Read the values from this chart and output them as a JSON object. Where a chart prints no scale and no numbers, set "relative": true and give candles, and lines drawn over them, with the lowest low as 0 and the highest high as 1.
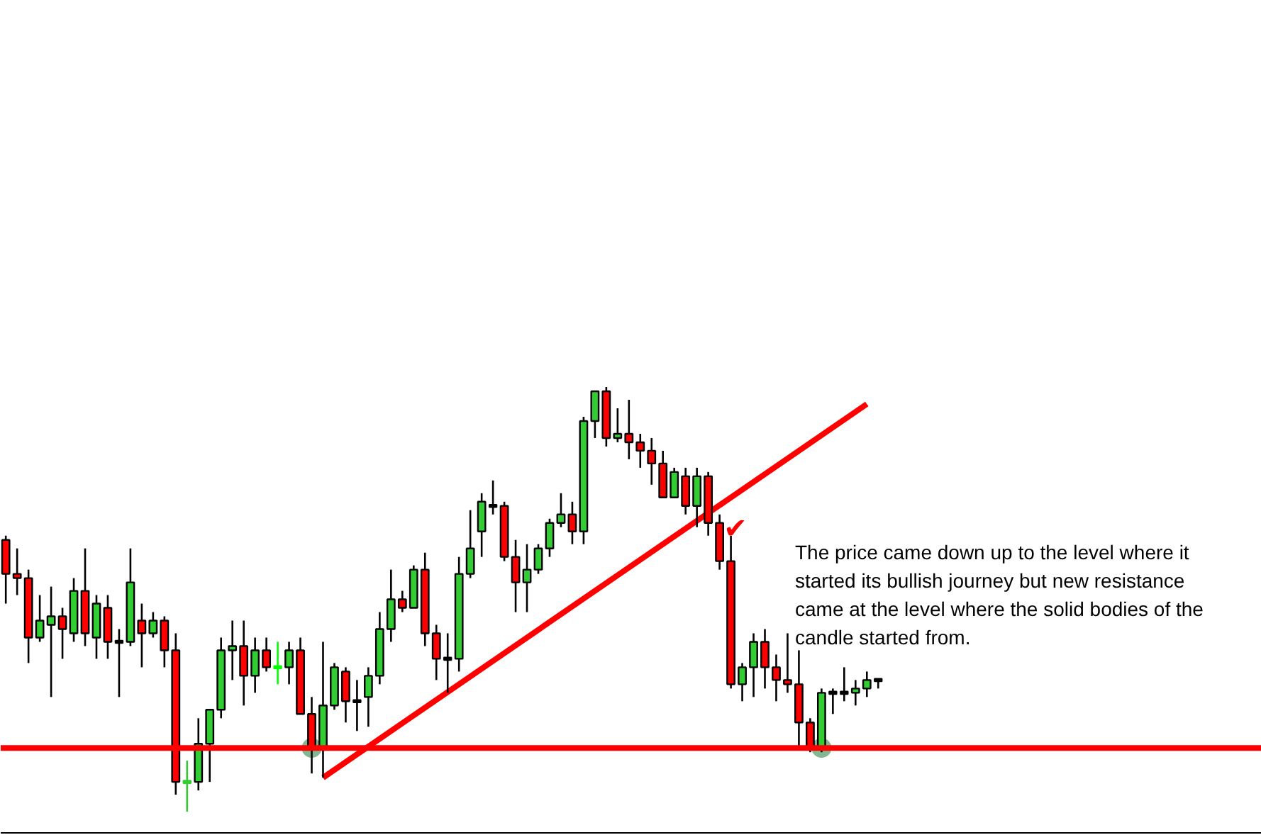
{
  "chart_data": {
    "type": "candlestick",
    "relative": true,
    "categories": [
      null,
      null,
      null,
      null,
      null,
      null,
      null,
      null,
      null,
      null,
      null,
      null,
      null,
      null,
      null,
      null,
      null,
      null,
      null,
      null,
      null,
      null,
      null,
      null,
      null,
      null,
      null,
      null,
      null,
      null,
      null,
      null,
      null,
      null,
      null,
      null,
      null,
      null,
      null,
      null,
      null,
      null,
      null,
      null,
      null,
      null,
      null,
      null,
      null,
      null,
      null,
      null,
      null,
      null,
      null,
      null,
      null,
      null,
      null,
      null,
      null,
      null,
      null,
      null,
      null,
      null,
      null,
      null,
      null,
      null,
      null,
      null,
      null,
      null,
      null,
      null,
      null,
      null
    ],
    "ohlc": [
      [
        0.64,
        0.65,
        0.49,
        0.56
      ],
      [
        0.56,
        0.62,
        0.51,
        0.55
      ],
      [
        0.55,
        0.57,
        0.35,
        0.41
      ],
      [
        0.41,
        0.51,
        0.4,
        0.45
      ],
      [
        0.44,
        0.53,
        0.27,
        0.46
      ],
      [
        0.46,
        0.48,
        0.36,
        0.43
      ],
      [
        0.42,
        0.55,
        0.4,
        0.52
      ],
      [
        0.52,
        0.62,
        0.39,
        0.42
      ],
      [
        0.41,
        0.51,
        0.36,
        0.49
      ],
      [
        0.48,
        0.51,
        0.36,
        0.4
      ],
      [
        0.4,
        0.43,
        0.27,
        0.4
      ],
      [
        0.4,
        0.62,
        0.39,
        0.54
      ],
      [
        0.45,
        0.49,
        0.34,
        0.42
      ],
      [
        0.42,
        0.47,
        0.41,
        0.45
      ],
      [
        0.45,
        0.46,
        0.34,
        0.38
      ],
      [
        0.38,
        0.42,
        0.04,
        0.07
      ],
      [
        0.07,
        0.12,
        0.0,
        0.07
      ],
      [
        0.07,
        0.22,
        0.05,
        0.16
      ],
      [
        0.16,
        0.24,
        0.07,
        0.24
      ],
      [
        0.24,
        0.41,
        0.22,
        0.38
      ],
      [
        0.38,
        0.45,
        0.31,
        0.39
      ],
      [
        0.39,
        0.45,
        0.25,
        0.32
      ],
      [
        0.32,
        0.41,
        0.28,
        0.38
      ],
      [
        0.38,
        0.41,
        0.33,
        0.34
      ],
      [
        0.34,
        0.4,
        0.3,
        0.34
      ],
      [
        0.34,
        0.4,
        0.3,
        0.38
      ],
      [
        0.38,
        0.41,
        0.23,
        0.23
      ],
      [
        0.23,
        0.27,
        0.09,
        0.15
      ],
      [
        0.15,
        0.4,
        0.08,
        0.25
      ],
      [
        0.25,
        0.35,
        0.24,
        0.34
      ],
      [
        0.33,
        0.34,
        0.21,
        0.26
      ],
      [
        0.26,
        0.31,
        0.19,
        0.26
      ],
      [
        0.27,
        0.34,
        0.2,
        0.32
      ],
      [
        0.32,
        0.47,
        0.3,
        0.43
      ],
      [
        0.43,
        0.57,
        0.4,
        0.5
      ],
      [
        0.5,
        0.52,
        0.47,
        0.48
      ],
      [
        0.48,
        0.58,
        0.48,
        0.57
      ],
      [
        0.57,
        0.61,
        0.39,
        0.42
      ],
      [
        0.42,
        0.44,
        0.31,
        0.36
      ],
      [
        0.36,
        0.42,
        0.28,
        0.36
      ],
      [
        0.36,
        0.6,
        0.33,
        0.56
      ],
      [
        0.56,
        0.71,
        0.55,
        0.62
      ],
      [
        0.66,
        0.75,
        0.6,
        0.73
      ],
      [
        0.72,
        0.78,
        0.7,
        0.72
      ],
      [
        0.72,
        0.73,
        0.59,
        0.6
      ],
      [
        0.6,
        0.64,
        0.47,
        0.54
      ],
      [
        0.54,
        0.63,
        0.47,
        0.57
      ],
      [
        0.57,
        0.63,
        0.56,
        0.62
      ],
      [
        0.62,
        0.69,
        0.6,
        0.68
      ],
      [
        0.68,
        0.75,
        0.67,
        0.7
      ],
      [
        0.7,
        0.73,
        0.63,
        0.66
      ],
      [
        0.66,
        0.93,
        0.63,
        0.92
      ],
      [
        0.92,
        0.99,
        0.88,
        0.99
      ],
      [
        0.99,
        1.0,
        0.86,
        0.88
      ],
      [
        0.88,
        0.95,
        0.87,
        0.89
      ],
      [
        0.89,
        0.97,
        0.83,
        0.87
      ],
      [
        0.87,
        0.89,
        0.81,
        0.85
      ],
      [
        0.85,
        0.88,
        0.77,
        0.82
      ],
      [
        0.82,
        0.85,
        0.74,
        0.74
      ],
      [
        0.74,
        0.81,
        0.74,
        0.8
      ],
      [
        0.79,
        0.81,
        0.7,
        0.72
      ],
      [
        0.72,
        0.81,
        0.67,
        0.79
      ],
      [
        0.79,
        0.8,
        0.65,
        0.68
      ],
      [
        0.68,
        0.7,
        0.57,
        0.59
      ],
      [
        0.59,
        0.65,
        0.29,
        0.3
      ],
      [
        0.3,
        0.35,
        0.26,
        0.34
      ],
      [
        0.34,
        0.42,
        0.27,
        0.4
      ],
      [
        0.4,
        0.43,
        0.29,
        0.34
      ],
      [
        0.34,
        0.37,
        0.26,
        0.31
      ],
      [
        0.31,
        0.42,
        0.28,
        0.3
      ],
      [
        0.3,
        0.38,
        0.15,
        0.21
      ],
      [
        0.21,
        0.22,
        0.14,
        0.15
      ],
      [
        0.15,
        0.29,
        0.14,
        0.28
      ],
      [
        0.28,
        0.29,
        0.23,
        0.28
      ],
      [
        0.28,
        0.34,
        0.26,
        0.28
      ],
      [
        0.28,
        0.31,
        0.25,
        0.29
      ],
      [
        0.29,
        0.33,
        0.27,
        0.31
      ],
      [
        0.31,
        0.31,
        0.29,
        0.31
      ]
    ],
    "colors": [
      "#ff0000",
      "#ff0000",
      "#ff0000",
      "#32cd32",
      "#32cd32",
      "#ff0000",
      "#32cd32",
      "#ff0000",
      "#32cd32",
      "#ff0000",
      "#000000",
      "#32cd32",
      "#ff0000",
      "#32cd32",
      "#ff0000",
      "#ff0000",
      "#32cd32",
      "#32cd32",
      "#32cd32",
      "#32cd32",
      "#32cd32",
      "#ff0000",
      "#32cd32",
      "#ff0000",
      "#00ff00",
      "#32cd32",
      "#ff0000",
      "#ff0000",
      "#32cd32",
      "#32cd32",
      "#ff0000",
      "#000000",
      "#32cd32",
      "#32cd32",
      "#32cd32",
      "#ff0000",
      "#32cd32",
      "#ff0000",
      "#ff0000",
      "#000000",
      "#32cd32",
      "#32cd32",
      "#32cd32",
      "#000000",
      "#ff0000",
      "#ff0000",
      "#32cd32",
      "#32cd32",
      "#32cd32",
      "#32cd32",
      "#ff0000",
      "#32cd32",
      "#32cd32",
      "#ff0000",
      "#32cd32",
      "#ff0000",
      "#ff0000",
      "#ff0000",
      "#ff0000",
      "#32cd32",
      "#ff0000",
      "#32cd32",
      "#ff0000",
      "#ff0000",
      "#ff0000",
      "#32cd32",
      "#32cd32",
      "#ff0000",
      "#ff0000",
      "#ff0000",
      "#ff0000",
      "#ff0000",
      "#32cd32",
      "#000000",
      "#000000",
      "#32cd32",
      "#32cd32",
      "#000000"
    ],
    "series": [
      {
        "type": "line",
        "color": "#ff0000",
        "values": [
          null,
          null,
          null,
          null,
          null,
          null,
          null,
          null,
          null,
          null,
          null,
          null,
          null,
          null,
          null,
          null,
          null,
          null,
          null,
          null,
          null,
          null,
          null,
          null,
          null,
          null,
          null,
          null,
          0.08,
          null,
          null,
          null,
          null,
          null,
          null,
          null,
          null,
          null,
          null,
          null,
          null,
          null,
          null,
          null,
          null,
          null,
          null,
          null,
          null,
          null,
          null,
          null,
          null,
          null,
          null,
          null,
          null,
          null,
          null,
          null,
          null,
          null,
          null,
          null,
          null,
          null,
          null,
          null,
          null,
          null,
          null,
          null,
          null,
          null,
          null,
          null,
          0.96,
          null
        ]
      },
      {
        "type": "scatter",
        "marker": "circle",
        "color": "#5a9e6e",
        "values": [
          null,
          null,
          null,
          null,
          null,
          null,
          null,
          null,
          null,
          null,
          null,
          null,
          null,
          null,
          null,
          null,
          null,
          null,
          null,
          null,
          null,
          null,
          null,
          null,
          null,
          null,
          null,
          0.15,
          null,
          null,
          null,
          null,
          null,
          null,
          null,
          null,
          null,
          null,
          null,
          null,
          null,
          null,
          null,
          null,
          null,
          null,
          null,
          null,
          null,
          null,
          null,
          null,
          null,
          null,
          null,
          null,
          null,
          null,
          null,
          null,
          null,
          null,
          null,
          null,
          null,
          null,
          null,
          null,
          null,
          null,
          null,
          null,
          0.15,
          null,
          null,
          null,
          null,
          null
        ]
      }
    ],
    "ref_lines": [
      {
        "axis": "y",
        "value": 0.15,
        "color": "#ff0000"
      }
    ],
    "annotations": [
      "The price came down up to the level where it started its bullish journey but new resistance came at the level where the solid bodies of the candle started from.",
      "✔"
    ]
  }
}
